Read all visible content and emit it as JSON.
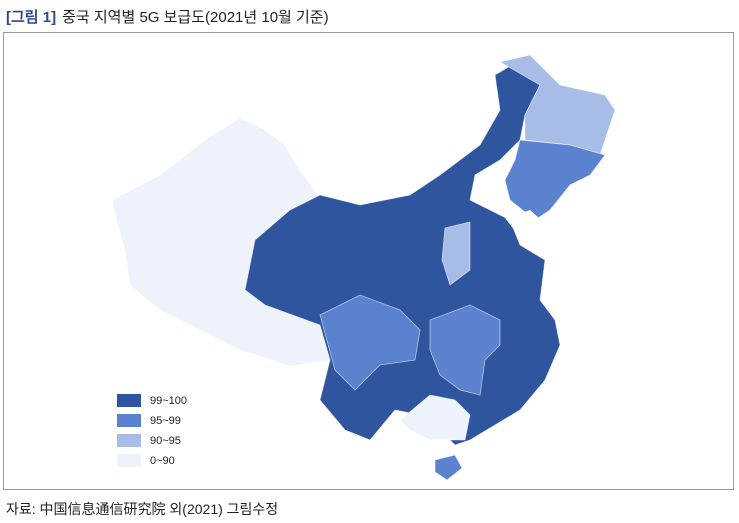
{
  "title_label": "[그림 1]",
  "title": "중국 지역별 5G 보급도(2021년 10월 기준)",
  "legend": [
    {
      "label": "99~100",
      "color": "#2f559f"
    },
    {
      "label": "95~99",
      "color": "#5b82cf"
    },
    {
      "label": "90~95",
      "color": "#a7bde8"
    },
    {
      "label": "0~90",
      "color": "#eef3fb"
    }
  ],
  "source": "자료: 中国信息通信研究院 외(2021) 그림수정"
}
